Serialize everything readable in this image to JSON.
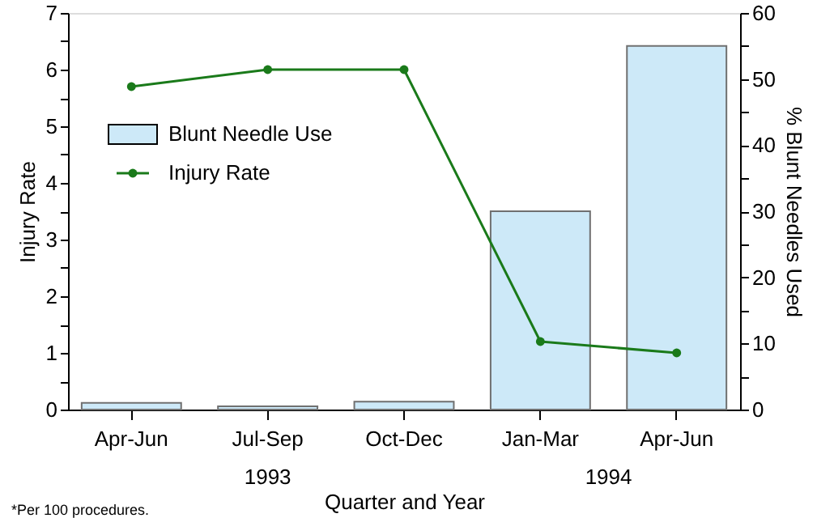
{
  "chart_data": {
    "type": "bar",
    "categories": [
      "Apr-Jun",
      "Jul-Sep",
      "Oct-Dec",
      "Jan-Mar",
      "Apr-Jun"
    ],
    "xlabel": "Quarter and Year",
    "ylabel": "Injury Rate",
    "y2label": "% Blunt Needles Used",
    "ylim": [
      0,
      7
    ],
    "yticks": [
      0,
      {
        "value": 0.5,
        "label": null
      },
      1,
      {
        "value": 1.5,
        "label": null
      },
      2,
      {
        "value": 2.5,
        "label": null
      },
      3,
      {
        "value": 3.5,
        "label": null
      },
      4,
      {
        "value": 4.5,
        "label": null
      },
      5,
      {
        "value": 5.5,
        "label": null
      },
      6,
      {
        "value": 6.5,
        "label": null
      },
      7
    ],
    "y2lim": [
      0,
      60
    ],
    "y2ticks": [
      0,
      {
        "value": 5,
        "label": null
      },
      10,
      {
        "value": 15,
        "label": null
      },
      20,
      {
        "value": 25,
        "label": null
      },
      30,
      {
        "value": 35,
        "label": null
      },
      40,
      {
        "value": 45,
        "label": null
      },
      50,
      {
        "value": 55,
        "label": null
      },
      60
    ],
    "series": [
      {
        "name": "Blunt Needle Use",
        "axis": "y2",
        "color": "#cde9f8",
        "values": [
          1,
          0.5,
          1.2,
          30,
          55
        ]
      },
      {
        "name": "Injury Rate",
        "type": "line",
        "color": "#1a7a1a",
        "values": [
          5.7,
          6,
          6,
          1.2,
          1.0
        ]
      }
    ],
    "marker": "circle",
    "legend": "left",
    "grid": false,
    "annotations": [
      "1993",
      "1994",
      "*Per 100 procedures."
    ]
  }
}
